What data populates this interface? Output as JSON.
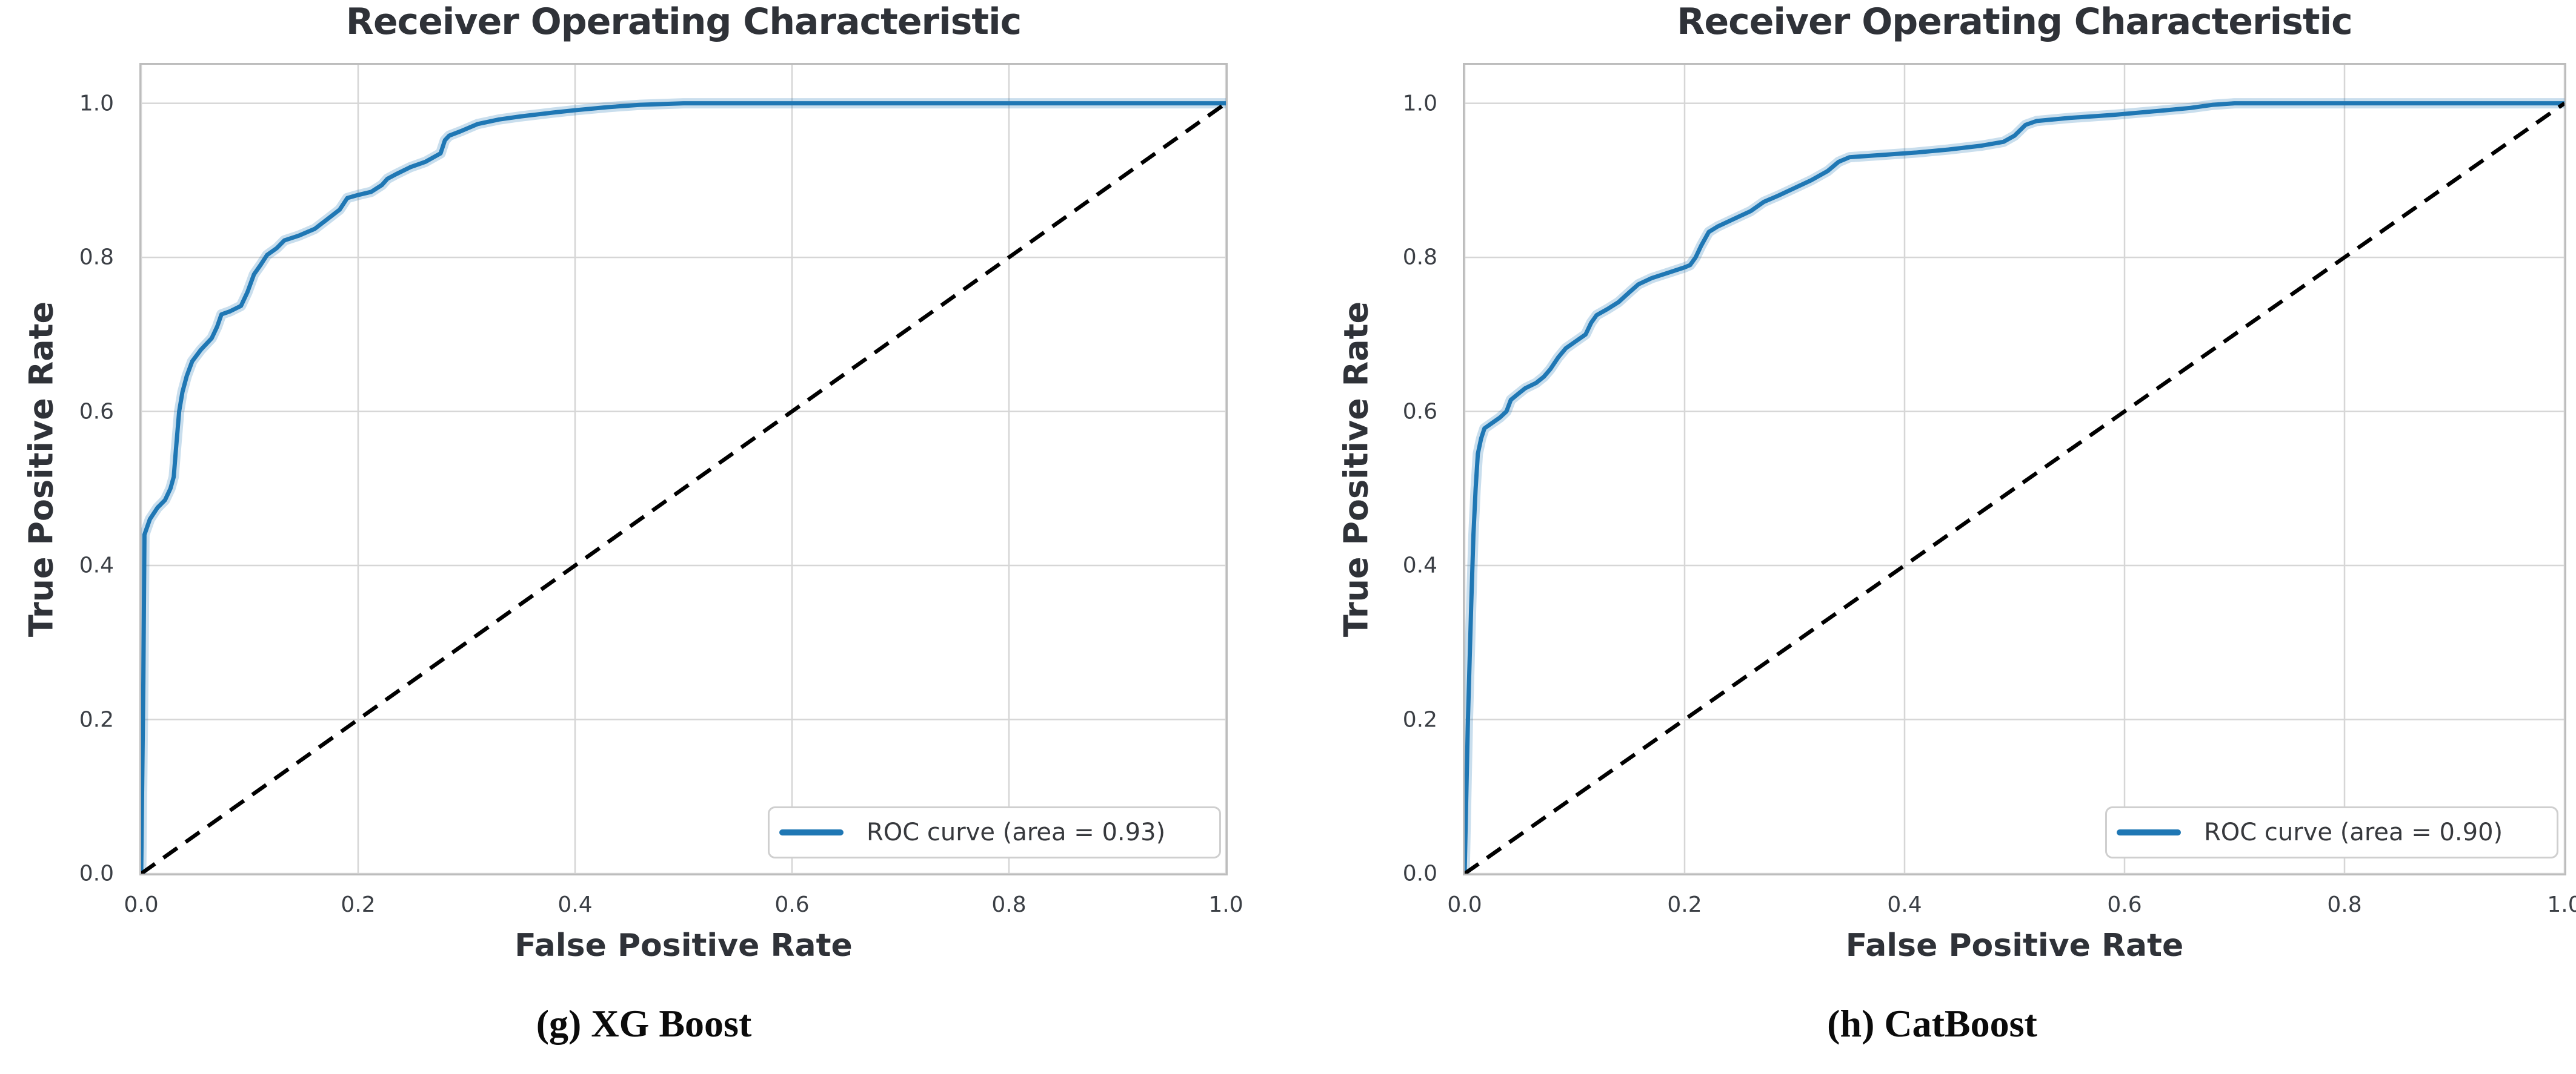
{
  "colors": {
    "roc_line": "#1f77b4",
    "roc_band": "#1f77b4",
    "roc_band_opacity": 0.24,
    "grid": "#d6d6d6",
    "spine": "#bdbdbd",
    "diagonal": "#000000",
    "title_text": "#2f3238",
    "tick_text": "#3b3f45"
  },
  "chart_data": [
    {
      "type": "line",
      "subfigure": "g",
      "title": "Receiver Operating Characteristic",
      "xlabel": "False Positive Rate",
      "ylabel": "True Positive Rate",
      "caption": "(g) XG Boost",
      "auc": 0.93,
      "xlim": [
        0.0,
        1.0
      ],
      "ylim": [
        0.0,
        1.05
      ],
      "xticks": [
        0.0,
        0.2,
        0.4,
        0.6,
        0.8,
        1.0
      ],
      "yticks": [
        0.0,
        0.2,
        0.4,
        0.6,
        0.8,
        1.0
      ],
      "xtick_labels": [
        "0.0",
        "0.2",
        "0.4",
        "0.6",
        "0.8",
        "1.0"
      ],
      "ytick_labels": [
        "0.0",
        "0.2",
        "0.4",
        "0.6",
        "0.8",
        "1.0"
      ],
      "grid": true,
      "legend": {
        "position": "lower right",
        "label": "ROC curve (area = 0.93)"
      },
      "series": [
        {
          "name": "ROC curve (area = 0.93)",
          "kind": "roc",
          "points": [
            [
              0.0,
              0.0
            ],
            [
              0.002,
              0.25
            ],
            [
              0.003,
              0.44
            ],
            [
              0.008,
              0.46
            ],
            [
              0.015,
              0.475
            ],
            [
              0.022,
              0.485
            ],
            [
              0.027,
              0.5
            ],
            [
              0.03,
              0.515
            ],
            [
              0.032,
              0.55
            ],
            [
              0.035,
              0.6
            ],
            [
              0.038,
              0.625
            ],
            [
              0.042,
              0.646
            ],
            [
              0.047,
              0.665
            ],
            [
              0.055,
              0.68
            ],
            [
              0.065,
              0.695
            ],
            [
              0.07,
              0.71
            ],
            [
              0.074,
              0.726
            ],
            [
              0.082,
              0.73
            ],
            [
              0.092,
              0.737
            ],
            [
              0.098,
              0.755
            ],
            [
              0.104,
              0.778
            ],
            [
              0.11,
              0.79
            ],
            [
              0.116,
              0.803
            ],
            [
              0.125,
              0.812
            ],
            [
              0.132,
              0.822
            ],
            [
              0.145,
              0.828
            ],
            [
              0.16,
              0.837
            ],
            [
              0.172,
              0.85
            ],
            [
              0.183,
              0.862
            ],
            [
              0.19,
              0.877
            ],
            [
              0.2,
              0.881
            ],
            [
              0.212,
              0.885
            ],
            [
              0.222,
              0.894
            ],
            [
              0.227,
              0.902
            ],
            [
              0.235,
              0.908
            ],
            [
              0.248,
              0.917
            ],
            [
              0.262,
              0.924
            ],
            [
              0.276,
              0.935
            ],
            [
              0.28,
              0.952
            ],
            [
              0.284,
              0.958
            ],
            [
              0.295,
              0.964
            ],
            [
              0.31,
              0.973
            ],
            [
              0.33,
              0.979
            ],
            [
              0.35,
              0.983
            ],
            [
              0.38,
              0.988
            ],
            [
              0.4,
              0.991
            ],
            [
              0.43,
              0.995
            ],
            [
              0.46,
              0.998
            ],
            [
              0.5,
              1.0
            ],
            [
              1.0,
              1.0
            ]
          ]
        },
        {
          "name": "chance diagonal",
          "kind": "dashed",
          "points": [
            [
              0.0,
              0.0
            ],
            [
              1.0,
              1.0
            ]
          ]
        }
      ]
    },
    {
      "type": "line",
      "subfigure": "h",
      "title": "Receiver Operating Characteristic",
      "xlabel": "False Positive Rate",
      "ylabel": "True Positive Rate",
      "caption": "(h) CatBoost",
      "auc": 0.9,
      "xlim": [
        0.0,
        1.0
      ],
      "ylim": [
        0.0,
        1.05
      ],
      "xticks": [
        0.0,
        0.2,
        0.4,
        0.6,
        0.8,
        1.0
      ],
      "yticks": [
        0.0,
        0.2,
        0.4,
        0.6,
        0.8,
        1.0
      ],
      "xtick_labels": [
        "0.0",
        "0.2",
        "0.4",
        "0.6",
        "0.8",
        "1.0"
      ],
      "ytick_labels": [
        "0.0",
        "0.2",
        "0.4",
        "0.6",
        "0.8",
        "1.0"
      ],
      "grid": true,
      "legend": {
        "position": "lower right",
        "label": "ROC curve (area = 0.90)"
      },
      "series": [
        {
          "name": "ROC curve (area = 0.90)",
          "kind": "roc",
          "points": [
            [
              0.0,
              0.0
            ],
            [
              0.003,
              0.2
            ],
            [
              0.006,
              0.35
            ],
            [
              0.008,
              0.44
            ],
            [
              0.01,
              0.5
            ],
            [
              0.012,
              0.545
            ],
            [
              0.015,
              0.565
            ],
            [
              0.018,
              0.578
            ],
            [
              0.025,
              0.585
            ],
            [
              0.032,
              0.592
            ],
            [
              0.038,
              0.6
            ],
            [
              0.042,
              0.615
            ],
            [
              0.048,
              0.622
            ],
            [
              0.055,
              0.63
            ],
            [
              0.065,
              0.637
            ],
            [
              0.072,
              0.645
            ],
            [
              0.078,
              0.655
            ],
            [
              0.085,
              0.67
            ],
            [
              0.092,
              0.682
            ],
            [
              0.1,
              0.69
            ],
            [
              0.11,
              0.7
            ],
            [
              0.115,
              0.715
            ],
            [
              0.12,
              0.725
            ],
            [
              0.13,
              0.733
            ],
            [
              0.14,
              0.742
            ],
            [
              0.15,
              0.755
            ],
            [
              0.158,
              0.765
            ],
            [
              0.17,
              0.773
            ],
            [
              0.185,
              0.78
            ],
            [
              0.2,
              0.787
            ],
            [
              0.205,
              0.79
            ],
            [
              0.21,
              0.8
            ],
            [
              0.215,
              0.815
            ],
            [
              0.222,
              0.833
            ],
            [
              0.23,
              0.84
            ],
            [
              0.245,
              0.85
            ],
            [
              0.26,
              0.86
            ],
            [
              0.272,
              0.872
            ],
            [
              0.285,
              0.88
            ],
            [
              0.3,
              0.89
            ],
            [
              0.315,
              0.9
            ],
            [
              0.33,
              0.912
            ],
            [
              0.34,
              0.924
            ],
            [
              0.35,
              0.93
            ],
            [
              0.38,
              0.933
            ],
            [
              0.41,
              0.936
            ],
            [
              0.44,
              0.94
            ],
            [
              0.47,
              0.945
            ],
            [
              0.49,
              0.95
            ],
            [
              0.5,
              0.958
            ],
            [
              0.51,
              0.972
            ],
            [
              0.52,
              0.977
            ],
            [
              0.55,
              0.981
            ],
            [
              0.59,
              0.985
            ],
            [
              0.63,
              0.99
            ],
            [
              0.66,
              0.994
            ],
            [
              0.68,
              0.998
            ],
            [
              0.7,
              1.0
            ],
            [
              1.0,
              1.0
            ]
          ]
        },
        {
          "name": "chance diagonal",
          "kind": "dashed",
          "points": [
            [
              0.0,
              0.0
            ],
            [
              1.0,
              1.0
            ]
          ]
        }
      ]
    }
  ]
}
